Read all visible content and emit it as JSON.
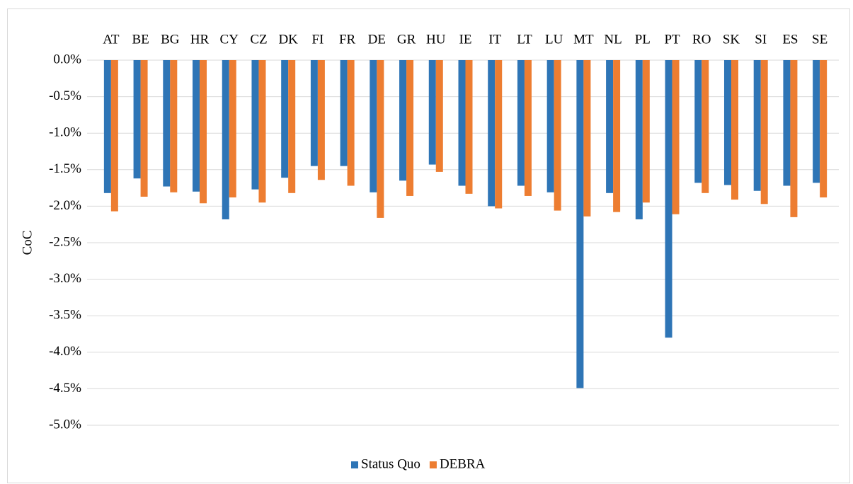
{
  "chart_data": {
    "type": "bar",
    "y_label": "CoC",
    "categories": [
      "AT",
      "BE",
      "BG",
      "HR",
      "CY",
      "CZ",
      "DK",
      "FI",
      "FR",
      "DE",
      "GR",
      "HU",
      "IE",
      "IT",
      "LT",
      "LU",
      "MT",
      "NL",
      "PL",
      "PT",
      "RO",
      "SK",
      "SI",
      "ES",
      "SE"
    ],
    "series": [
      {
        "name": "Status Quo",
        "color": "#2e75b6",
        "values": [
          -1.82,
          -1.62,
          -1.73,
          -1.8,
          -2.18,
          -1.77,
          -1.61,
          -1.45,
          -1.45,
          -1.81,
          -1.65,
          -1.43,
          -1.72,
          -2.0,
          -1.72,
          -1.81,
          -4.49,
          -1.82,
          -2.18,
          -3.8,
          -1.68,
          -1.71,
          -1.79,
          -1.72,
          -1.68
        ]
      },
      {
        "name": "DEBRA",
        "color": "#ed7d31",
        "values": [
          -2.07,
          -1.87,
          -1.81,
          -1.96,
          -1.88,
          -1.95,
          -1.82,
          -1.64,
          -1.72,
          -2.16,
          -1.86,
          -1.53,
          -1.83,
          -2.03,
          -1.86,
          -2.06,
          -2.14,
          -2.08,
          -1.95,
          -2.11,
          -1.82,
          -1.91,
          -1.97,
          -2.15,
          -1.88
        ]
      }
    ],
    "ylim": [
      -5.0,
      0.0
    ],
    "yticks": [
      {
        "value": 0.0,
        "label": "0.0%"
      },
      {
        "value": -0.5,
        "label": "-0.5%"
      },
      {
        "value": -1.0,
        "label": "-1.0%"
      },
      {
        "value": -1.5,
        "label": "-1.5%"
      },
      {
        "value": -2.0,
        "label": "-2.0%"
      },
      {
        "value": -2.5,
        "label": "-2.5%"
      },
      {
        "value": -3.0,
        "label": "-3.0%"
      },
      {
        "value": -3.5,
        "label": "-3.5%"
      },
      {
        "value": -4.0,
        "label": "-4.0%"
      },
      {
        "value": -4.5,
        "label": "-4.5%"
      },
      {
        "value": -5.0,
        "label": "-5.0%"
      }
    ],
    "grid": true,
    "legend": "bottom"
  }
}
